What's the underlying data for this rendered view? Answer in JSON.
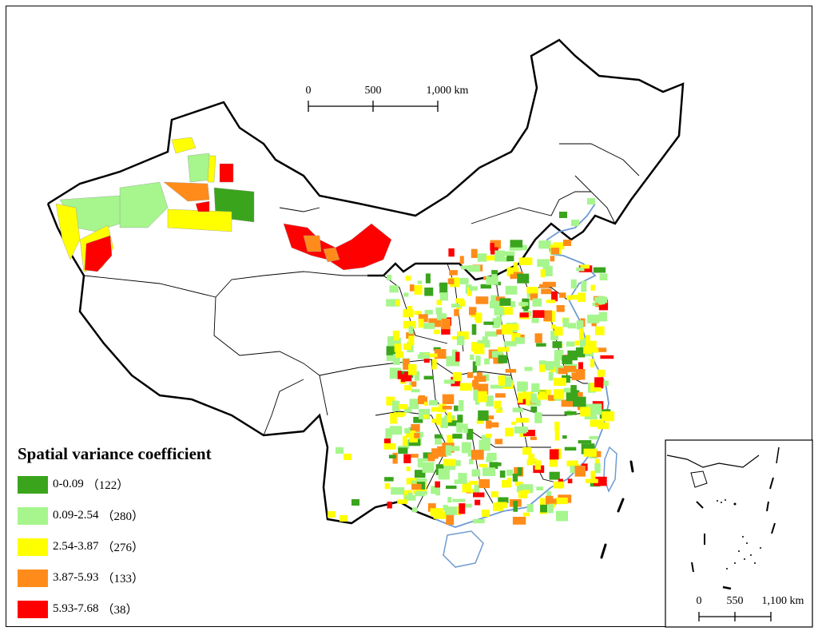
{
  "legend": {
    "title": "Spatial variance coefficient",
    "classes": [
      {
        "label": "0-0.09",
        "count": "（122）",
        "color": "#3aa41d"
      },
      {
        "label": "0.09-2.54",
        "count": "（280）",
        "color": "#a6f58d"
      },
      {
        "label": "2.54-3.87",
        "count": "（276）",
        "color": "#ffff00"
      },
      {
        "label": "3.87-5.93",
        "count": "（133）",
        "color": "#ff8c1a"
      },
      {
        "label": "5.93-7.68",
        "count": "（38）",
        "color": "#ff0000"
      }
    ]
  },
  "scale_bar": {
    "ticks": [
      "0",
      "500",
      "1,000 km"
    ]
  },
  "inset_scale_bar": {
    "ticks": [
      "0",
      "550",
      "1,100 km"
    ]
  },
  "colors": {
    "border": "#000000",
    "coast": "#6f9bd1"
  }
}
